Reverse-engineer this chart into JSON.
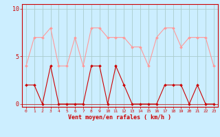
{
  "x": [
    0,
    1,
    2,
    3,
    4,
    5,
    6,
    7,
    8,
    9,
    10,
    11,
    12,
    13,
    14,
    15,
    16,
    17,
    18,
    19,
    20,
    21,
    22,
    23
  ],
  "wind_avg": [
    2,
    2,
    0,
    4,
    0,
    0,
    0,
    0,
    4,
    4,
    0,
    4,
    2,
    0,
    0,
    0,
    0,
    2,
    2,
    2,
    0,
    2,
    0,
    0
  ],
  "wind_gust": [
    4,
    7,
    7,
    8,
    4,
    4,
    7,
    4,
    8,
    8,
    7,
    7,
    7,
    6,
    6,
    4,
    7,
    8,
    8,
    6,
    7,
    7,
    7,
    4
  ],
  "bg_color": "#cceeff",
  "grid_color": "#aacccc",
  "line_avg_color": "#cc0000",
  "line_gust_color": "#ff9999",
  "axis_color": "#cc0000",
  "xlabel": "Vent moyen/en rafales ( km/h )",
  "yticks": [
    0,
    5,
    10
  ],
  "ylim": [
    -0.3,
    10.5
  ],
  "xlim": [
    -0.5,
    23.5
  ],
  "marker_size": 2.0,
  "linewidth": 0.8
}
